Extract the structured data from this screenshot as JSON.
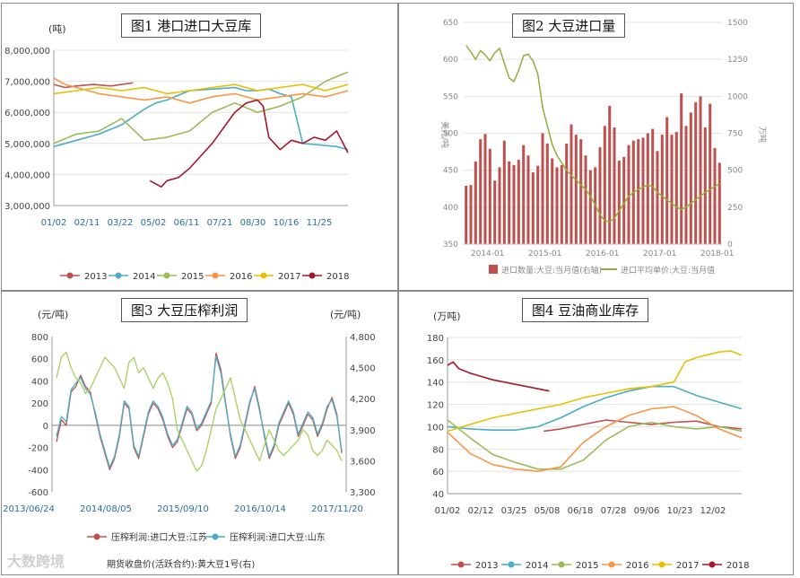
{
  "chart_data": [
    {
      "type": "line",
      "title": "图1 港口进口大豆库",
      "unit": "(吨)",
      "x_ticks": [
        "01/02",
        "02/11",
        "03/22",
        "05/02",
        "06/11",
        "07/21",
        "08/30",
        "10/16",
        "11/25"
      ],
      "y_ticks": [
        "8,000,000",
        "7,000,000",
        "6,000,000",
        "5,000,000",
        "4,000,000",
        "3,000,000"
      ],
      "ylim": [
        3000000,
        8000000
      ],
      "legend_position": "bottom",
      "series": [
        {
          "name": "2013",
          "color": "#c0504d",
          "x": [
            0,
            2,
            4,
            7,
            10,
            12,
            14
          ],
          "values": [
            6900000,
            6800000,
            6850000,
            6900000,
            6850000,
            6900000,
            6950000
          ]
        },
        {
          "name": "2014",
          "color": "#4bacc6",
          "x": [
            0,
            4,
            8,
            12,
            16,
            18,
            20,
            24,
            28,
            32,
            34,
            36,
            38,
            40,
            42,
            44,
            47,
            50,
            52
          ],
          "values": [
            4900000,
            5100000,
            5300000,
            5600000,
            6100000,
            6300000,
            6400000,
            6700000,
            6750000,
            6800000,
            6700000,
            6700000,
            6750000,
            6600000,
            6500000,
            5000000,
            4950000,
            4900000,
            4800000
          ]
        },
        {
          "name": "2015",
          "color": "#9bbb59",
          "x": [
            0,
            4,
            8,
            12,
            16,
            20,
            24,
            28,
            32,
            36,
            40,
            44,
            48,
            52
          ],
          "values": [
            5000000,
            5300000,
            5400000,
            5800000,
            5100000,
            5200000,
            5400000,
            6000000,
            6300000,
            6000000,
            6200000,
            6500000,
            7000000,
            7300000
          ]
        },
        {
          "name": "2016",
          "color": "#f79646",
          "x": [
            0,
            2,
            4,
            8,
            12,
            16,
            20,
            24,
            28,
            32,
            36,
            40,
            44,
            48,
            52
          ],
          "values": [
            7100000,
            6900000,
            6800000,
            6600000,
            6500000,
            6400000,
            6500000,
            6300000,
            6500000,
            6600000,
            6400000,
            6500000,
            6600000,
            6500000,
            6700000
          ]
        },
        {
          "name": "2017",
          "color": "#e6c100",
          "x": [
            0,
            4,
            8,
            12,
            16,
            20,
            24,
            28,
            32,
            36,
            40,
            44,
            48,
            52
          ],
          "values": [
            6600000,
            6700000,
            6800000,
            6700000,
            6800000,
            6600000,
            6700000,
            6800000,
            6900000,
            6700000,
            6800000,
            6900000,
            6700000,
            6900000
          ]
        },
        {
          "name": "2018",
          "color": "#a3192a",
          "x": [
            17,
            18,
            19,
            20,
            22,
            24,
            26,
            28,
            30,
            32,
            34,
            36,
            37,
            38,
            40,
            42,
            44,
            46,
            48,
            50,
            52
          ],
          "values": [
            3800000,
            3700000,
            3600000,
            3800000,
            3900000,
            4200000,
            4600000,
            5000000,
            5500000,
            6000000,
            6300000,
            6400000,
            6200000,
            5200000,
            4800000,
            5100000,
            5000000,
            5200000,
            5100000,
            5400000,
            4700000
          ]
        }
      ]
    },
    {
      "type": "bar",
      "title": "图2 大豆进口量",
      "ylabel_left": "美元/吨",
      "ylabel_right": "万吨",
      "x_ticks": [
        "2014-01",
        "2015-01",
        "2016-01",
        "2017-01",
        "2018-01"
      ],
      "y_left_ticks": [
        "650",
        "600",
        "550",
        "500",
        "450",
        "400",
        "350"
      ],
      "y_right_ticks": [
        "1500",
        "1250",
        "1000",
        "750",
        "500",
        "250",
        "0"
      ],
      "ylim_left": [
        350,
        650
      ],
      "ylim_right": [
        0,
        1500
      ],
      "bar_series": {
        "name": "进口数量:大豆:当月值(右轴)",
        "color": "#c0504d",
        "values": [
          395,
          400,
          560,
          710,
          745,
          645,
          430,
          520,
          700,
          560,
          535,
          570,
          670,
          600,
          485,
          530,
          750,
          680,
          580,
          520,
          535,
          680,
          810,
          740,
          710,
          600,
          500,
          520,
          655,
          800,
          935,
          790,
          565,
          590,
          670,
          700,
          710,
          720,
          750,
          780,
          630,
          740,
          860,
          740,
          760,
          1020,
          800,
          890,
          960,
          1000,
          790,
          950,
          650,
          550
        ]
      },
      "line_series": {
        "name": "进口平均单价:大豆:当月值",
        "color": "#8db03a",
        "values": [
          619,
          610,
          600,
          612,
          606,
          598,
          609,
          615,
          595,
          575,
          570,
          585,
          605,
          607,
          598,
          580,
          535,
          510,
          485,
          470,
          460,
          450,
          443,
          437,
          430,
          424,
          415,
          403,
          390,
          382,
          380,
          385,
          395,
          405,
          415,
          420,
          424,
          427,
          430,
          428,
          420,
          415,
          410,
          405,
          400,
          397,
          400,
          405,
          410,
          415,
          420,
          424,
          428,
          432
        ]
      },
      "legend_position": "bottom"
    },
    {
      "type": "line",
      "title": "图3 大豆压榨利润",
      "unit_left": "(元/吨)",
      "unit_right": "(元/吨)",
      "x_ticks": [
        "2013/06/24",
        "2014/08/05",
        "2015/09/10",
        "2016/10/14",
        "2017/11/20"
      ],
      "y_left_ticks": [
        "800",
        "600",
        "400",
        "200",
        "0",
        "-200",
        "-400",
        "-600"
      ],
      "y_right_ticks": [
        "4,800",
        "4,500",
        "4,200",
        "3,900",
        "3,600",
        "3,300"
      ],
      "ylim_left": [
        -600,
        800
      ],
      "ylim_right": [
        3300,
        4800
      ],
      "legend_position": "bottom",
      "series": [
        {
          "name": "压榨利润:进口大豆:江苏",
          "color": "#c0504d",
          "axis": "left",
          "values": [
            -150,
            50,
            0,
            300,
            350,
            450,
            350,
            300,
            100,
            -100,
            -250,
            -400,
            -300,
            -100,
            200,
            150,
            -200,
            -300,
            -100,
            100,
            200,
            150,
            50,
            -100,
            -200,
            -150,
            0,
            150,
            100,
            -50,
            0,
            100,
            200,
            650,
            500,
            200,
            -100,
            -300,
            -200,
            0,
            200,
            350,
            150,
            -100,
            -300,
            -200,
            0,
            100,
            200,
            100,
            -100,
            0,
            100,
            50,
            -100,
            0,
            150,
            250,
            100,
            -250
          ]
        },
        {
          "name": "压榨利润:进口大豆:山东",
          "color": "#4bacc6",
          "axis": "left",
          "values": [
            -100,
            80,
            30,
            320,
            380,
            430,
            330,
            280,
            120,
            -80,
            -230,
            -380,
            -280,
            -80,
            220,
            170,
            -180,
            -280,
            -80,
            120,
            220,
            170,
            70,
            -80,
            -180,
            -130,
            20,
            170,
            120,
            -30,
            20,
            120,
            220,
            620,
            470,
            180,
            -80,
            -280,
            -180,
            20,
            220,
            330,
            130,
            -80,
            -280,
            -180,
            20,
            120,
            220,
            120,
            -80,
            20,
            120,
            70,
            -80,
            20,
            170,
            230,
            80,
            -230
          ]
        },
        {
          "name": "期货收盘价(活跃合约):黄大豆1号(右)",
          "color": "#a6cf5f",
          "axis": "right",
          "values": [
            4400,
            4600,
            4650,
            4500,
            4400,
            4350,
            4250,
            4300,
            4400,
            4500,
            4600,
            4550,
            4500,
            4400,
            4300,
            4550,
            4600,
            4450,
            4500,
            4400,
            4300,
            4400,
            4450,
            4350,
            4200,
            3900,
            3800,
            3700,
            3600,
            3500,
            3550,
            3700,
            3900,
            4100,
            4200,
            4300,
            4400,
            4200,
            4000,
            3900,
            3800,
            3700,
            3600,
            3750,
            3900,
            3800,
            3700,
            3650,
            3700,
            3750,
            3800,
            3900,
            3850,
            3700,
            3650,
            3700,
            3800,
            3750,
            3700,
            3600
          ]
        }
      ]
    },
    {
      "type": "line",
      "title": "图4 豆油商业库存",
      "unit": "(万吨)",
      "x_ticks": [
        "01/02",
        "02/12",
        "03/25",
        "05/08",
        "06/18",
        "07/28",
        "09/06",
        "10/23",
        "12/02"
      ],
      "y_ticks": [
        "180",
        "160",
        "140",
        "120",
        "100",
        "80",
        "60",
        "40"
      ],
      "ylim": [
        40,
        180
      ],
      "legend_position": "bottom",
      "series": [
        {
          "name": "2013",
          "color": "#c0504d",
          "x": [
            17,
            20,
            24,
            28,
            32,
            36,
            40,
            44,
            48,
            52
          ],
          "values": [
            96,
            98,
            102,
            106,
            104,
            102,
            104,
            105,
            100,
            98
          ]
        },
        {
          "name": "2014",
          "color": "#4bacc6",
          "x": [
            0,
            4,
            8,
            12,
            16,
            20,
            24,
            28,
            32,
            36,
            40,
            44,
            48,
            52
          ],
          "values": [
            100,
            98,
            97,
            97,
            100,
            108,
            118,
            126,
            132,
            136,
            136,
            128,
            122,
            116
          ]
        },
        {
          "name": "2015",
          "color": "#9bbb59",
          "x": [
            0,
            4,
            8,
            12,
            16,
            20,
            24,
            28,
            32,
            36,
            40,
            44,
            48,
            52
          ],
          "values": [
            106,
            90,
            75,
            68,
            62,
            62,
            70,
            88,
            100,
            104,
            100,
            98,
            100,
            96
          ]
        },
        {
          "name": "2016",
          "color": "#f79646",
          "x": [
            0,
            4,
            8,
            12,
            16,
            20,
            24,
            28,
            32,
            36,
            40,
            44,
            48,
            52
          ],
          "values": [
            95,
            76,
            66,
            62,
            60,
            64,
            86,
            100,
            110,
            116,
            118,
            110,
            98,
            90
          ]
        },
        {
          "name": "2017",
          "color": "#e6c100",
          "x": [
            0,
            4,
            8,
            12,
            16,
            20,
            24,
            28,
            32,
            36,
            40,
            42,
            44,
            48,
            50,
            52
          ],
          "values": [
            96,
            102,
            108,
            112,
            116,
            120,
            126,
            130,
            134,
            136,
            140,
            158,
            162,
            167,
            168,
            164
          ]
        },
        {
          "name": "2018",
          "color": "#a3192a",
          "x": [
            0,
            1,
            2,
            4,
            6,
            8,
            10,
            12,
            14,
            16,
            18
          ],
          "values": [
            155,
            158,
            152,
            148,
            145,
            142,
            140,
            138,
            136,
            134,
            132
          ]
        }
      ]
    }
  ],
  "watermark": "大数跨境"
}
